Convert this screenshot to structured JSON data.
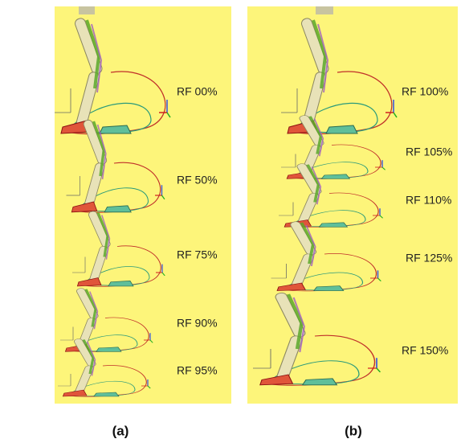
{
  "panels": [
    {
      "caption": "(a)",
      "labels": [
        "RF 00%",
        "RF 50%",
        "RF 75%",
        "RF 90%",
        "RF 95%"
      ]
    },
    {
      "caption": "(b)",
      "labels": [
        "RF 100%",
        "RF 105%",
        "RF 110%",
        "RF 125%",
        "RF 150%"
      ]
    }
  ]
}
